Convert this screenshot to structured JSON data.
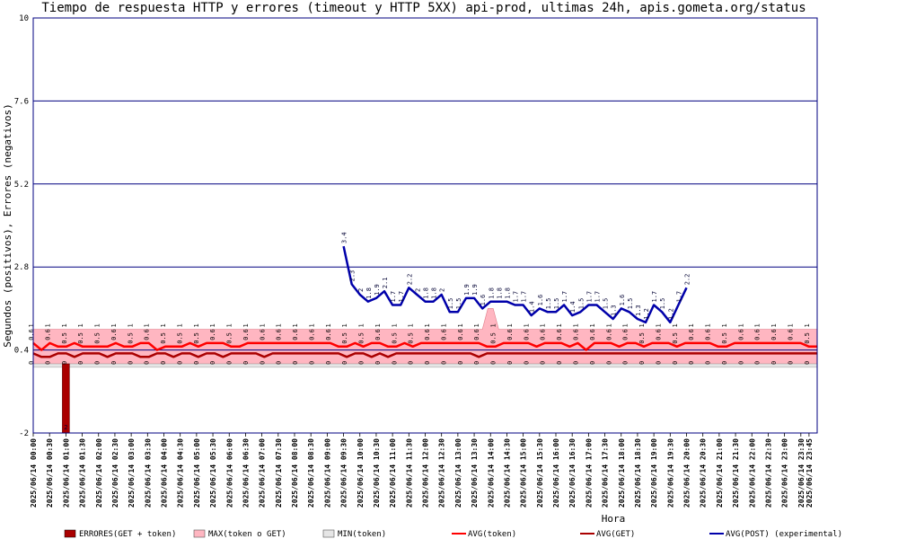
{
  "chart_data": {
    "type": "line",
    "title": "Tiempo de respuesta HTTP y errores (timeout y HTTP 5XX) api-prod, ultimas 24h, apis.gometa.org/status",
    "xlabel": "Hora",
    "ylabel": "Segundos (positivos), Errores (negativos)",
    "ylim": [
      -2,
      10
    ],
    "yticks": [
      "-2",
      "0.4",
      "2.8",
      "5.2",
      "7.6",
      "10"
    ],
    "grid": true,
    "legend_position": "bottom",
    "x_tick_labels": [
      "2025/06/14 00:00",
      "2025/06/14 00:30",
      "2025/06/14 01:00",
      "2025/06/14 01:30",
      "2025/06/14 02:00",
      "2025/06/14 02:30",
      "2025/06/14 03:00",
      "2025/06/14 03:30",
      "2025/06/14 04:00",
      "2025/06/14 04:30",
      "2025/06/14 05:00",
      "2025/06/14 05:30",
      "2025/06/14 06:00",
      "2025/06/14 06:30",
      "2025/06/14 07:00",
      "2025/06/14 07:30",
      "2025/06/14 08:00",
      "2025/06/14 08:30",
      "2025/06/14 09:00",
      "2025/06/14 09:30",
      "2025/06/14 10:00",
      "2025/06/14 10:30",
      "2025/06/14 11:00",
      "2025/06/14 11:30",
      "2025/06/14 12:00",
      "2025/06/14 12:30",
      "2025/06/14 13:00",
      "2025/06/14 13:30",
      "2025/06/14 14:00",
      "2025/06/14 14:30",
      "2025/06/14 15:00",
      "2025/06/14 15:30",
      "2025/06/14 16:00",
      "2025/06/14 16:30",
      "2025/06/14 17:00",
      "2025/06/14 17:30",
      "2025/06/14 18:00",
      "2025/06/14 18:30",
      "2025/06/14 19:00",
      "2025/06/14 19:30",
      "2025/06/14 20:00",
      "2025/06/14 20:30",
      "2025/06/14 21:00",
      "2025/06/14 21:30",
      "2025/06/14 22:00",
      "2025/06/14 22:30",
      "2025/06/14 23:00",
      "2025/06/14 23:30",
      "2025/06/14 23:45"
    ],
    "x_tick_hours": [
      0,
      0.5,
      1,
      1.5,
      2,
      2.5,
      3,
      3.5,
      4,
      4.5,
      5,
      5.5,
      6,
      6.5,
      7,
      7.5,
      8,
      8.5,
      9,
      9.5,
      10,
      10.5,
      11,
      11.5,
      12,
      12.5,
      13,
      13.5,
      14,
      14.5,
      15,
      15.5,
      16,
      16.5,
      17,
      17.5,
      18,
      18.5,
      19,
      19.5,
      20,
      20.5,
      21,
      21.5,
      22,
      22.5,
      23,
      23.5,
      23.75
    ],
    "x_range_hours": [
      0,
      24
    ],
    "series": [
      {
        "name": "ERRORES(GET + token)",
        "kind": "bar",
        "color": "#aa0000",
        "points": [
          {
            "x": 1.0,
            "y": -2
          }
        ]
      },
      {
        "name": "MAX(token o GET)",
        "kind": "area",
        "color": "#ffb6c1",
        "value": 1,
        "peak": {
          "x": 14.0,
          "y": 1.6
        }
      },
      {
        "name": "MIN(token)",
        "kind": "area",
        "color": "#e6e6e6",
        "value": 0
      },
      {
        "name": "AVG(token)",
        "kind": "line",
        "color": "#ff0000",
        "values": [
          0.6,
          0.4,
          0.6,
          0.5,
          0.5,
          0.6,
          0.5,
          0.5,
          0.5,
          0.5,
          0.6,
          0.5,
          0.5,
          0.6,
          0.6,
          0.4,
          0.5,
          0.5,
          0.5,
          0.6,
          0.5,
          0.6,
          0.6,
          0.6,
          0.5,
          0.5,
          0.6,
          0.6,
          0.6,
          0.6,
          0.6,
          0.6,
          0.6,
          0.6,
          0.6,
          0.6,
          0.6,
          0.5,
          0.5,
          0.6,
          0.5,
          0.6,
          0.6,
          0.5,
          0.5,
          0.6,
          0.5,
          0.6,
          0.6,
          0.6,
          0.6,
          0.6,
          0.6,
          0.6,
          0.6,
          0.5,
          0.5,
          0.6,
          0.6,
          0.6,
          0.6,
          0.5,
          0.6,
          0.6,
          0.6,
          0.5,
          0.6,
          0.4,
          0.6,
          0.6,
          0.6,
          0.5,
          0.6,
          0.6,
          0.5,
          0.6,
          0.6,
          0.6,
          0.5,
          0.6,
          0.6,
          0.6,
          0.6,
          0.5,
          0.5,
          0.6,
          0.6,
          0.6,
          0.6,
          0.6,
          0.6,
          0.6,
          0.6,
          0.6,
          0.5,
          0.5
        ]
      },
      {
        "name": "AVG(GET)",
        "kind": "line",
        "color": "#aa0000",
        "values": [
          0.3,
          0.2,
          0.2,
          0.3,
          0.3,
          0.2,
          0.3,
          0.3,
          0.3,
          0.2,
          0.3,
          0.3,
          0.3,
          0.2,
          0.2,
          0.3,
          0.3,
          0.2,
          0.3,
          0.3,
          0.2,
          0.3,
          0.3,
          0.2,
          0.3,
          0.3,
          0.3,
          0.3,
          0.2,
          0.3,
          0.3,
          0.3,
          0.3,
          0.3,
          0.3,
          0.3,
          0.3,
          0.3,
          0.2,
          0.3,
          0.3,
          0.2,
          0.3,
          0.2,
          0.3,
          0.3,
          0.3,
          0.3,
          0.3,
          0.3,
          0.3,
          0.3,
          0.3,
          0.3,
          0.2,
          0.3,
          0.3,
          0.3,
          0.3,
          0.3,
          0.3,
          0.3,
          0.3,
          0.3,
          0.3,
          0.3,
          0.3,
          0.3,
          0.3,
          0.3,
          0.3,
          0.3,
          0.3,
          0.3,
          0.3,
          0.3,
          0.3,
          0.3,
          0.3,
          0.3,
          0.3,
          0.3,
          0.3,
          0.3,
          0.3,
          0.3,
          0.3,
          0.3,
          0.3,
          0.3,
          0.3,
          0.3,
          0.3,
          0.3,
          0.3,
          0.3
        ]
      },
      {
        "name": "AVG(POST) (experimental)",
        "kind": "line",
        "color": "#0000aa",
        "x": [
          9.5,
          9.75,
          10.0,
          10.25,
          10.5,
          10.75,
          11.0,
          11.25,
          11.5,
          11.75,
          12.0,
          12.25,
          12.5,
          12.75,
          13.0,
          13.25,
          13.5,
          13.75,
          14.0,
          14.25,
          14.5,
          14.75,
          15.0,
          15.25,
          15.5,
          15.75,
          16.0,
          16.25,
          16.5,
          16.75,
          17.0,
          17.25,
          17.5,
          17.75,
          18.0,
          18.25,
          18.5,
          18.75,
          19.0,
          19.25,
          19.5,
          19.75,
          20.0
        ],
        "values": [
          3.4,
          2.3,
          2.0,
          1.8,
          1.9,
          2.1,
          1.7,
          1.7,
          2.2,
          2.0,
          1.8,
          1.8,
          2.0,
          1.5,
          1.5,
          1.9,
          1.9,
          1.6,
          1.8,
          1.8,
          1.8,
          1.7,
          1.7,
          1.4,
          1.6,
          1.5,
          1.5,
          1.7,
          1.4,
          1.5,
          1.7,
          1.7,
          1.5,
          1.3,
          1.6,
          1.5,
          1.3,
          1.2,
          1.7,
          1.5,
          1.2,
          1.7,
          2.2
        ]
      }
    ],
    "legend": [
      "ERRORES(GET + token)",
      "MAX(token o GET)",
      "MIN(token)",
      "AVG(token)",
      "AVG(GET)",
      "AVG(POST) (experimental)"
    ]
  }
}
